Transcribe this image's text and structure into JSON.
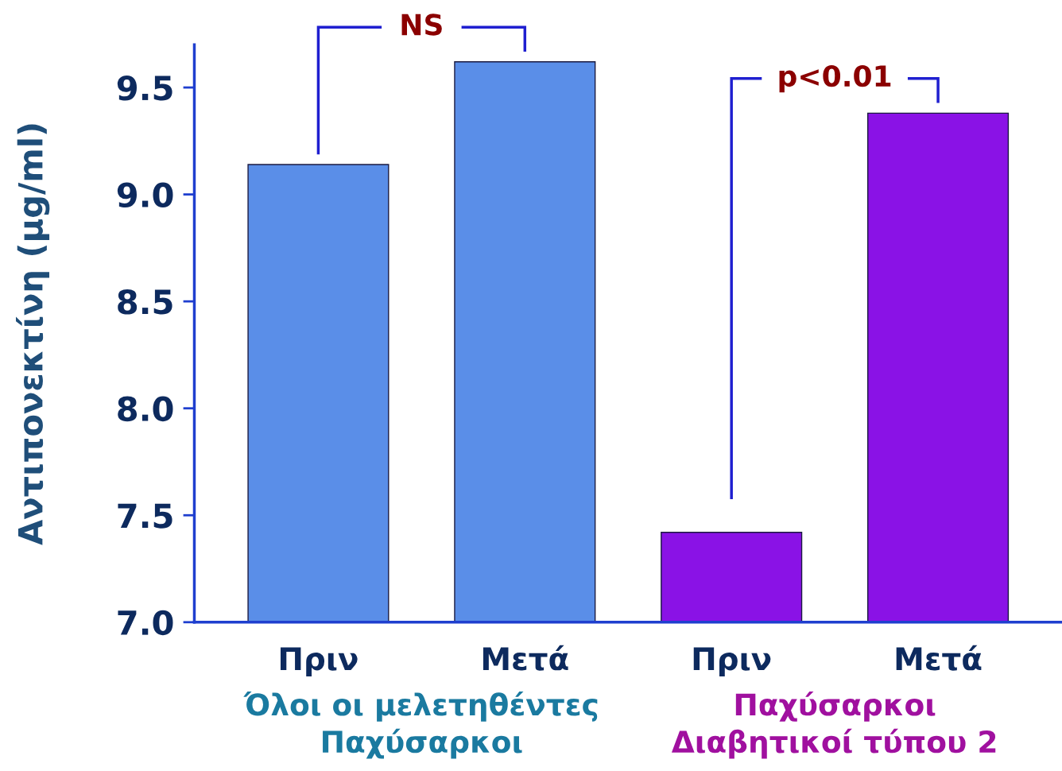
{
  "chart_data": {
    "type": "bar",
    "ylabel": "Αντιπονεκτίνη (μg/ml)",
    "categories": [
      "Πριν",
      "Μετά",
      "Πριν",
      "Μετά"
    ],
    "values": [
      9.14,
      9.62,
      7.42,
      9.38
    ],
    "colors": [
      "#5a8ee8",
      "#5a8ee8",
      "#8a12e6",
      "#8a12e6"
    ],
    "ylim": [
      7.0,
      9.7
    ],
    "yticks": [
      {
        "value": 7.0,
        "label": "7.0"
      },
      {
        "value": 7.5,
        "label": "7.5"
      },
      {
        "value": 8.0,
        "label": "8.0"
      },
      {
        "value": 8.5,
        "label": "8.5"
      },
      {
        "value": 9.0,
        "label": "9.0"
      },
      {
        "value": 9.5,
        "label": "9.5"
      }
    ],
    "grid": false,
    "legend": false,
    "annotations": [
      "NS",
      "p<0.01",
      "Όλοι οι μελετηθέντες\nΠαχύσαρκοι",
      "Παχύσαρκοι\nΔιαβητικοί τύπου 2"
    ]
  }
}
